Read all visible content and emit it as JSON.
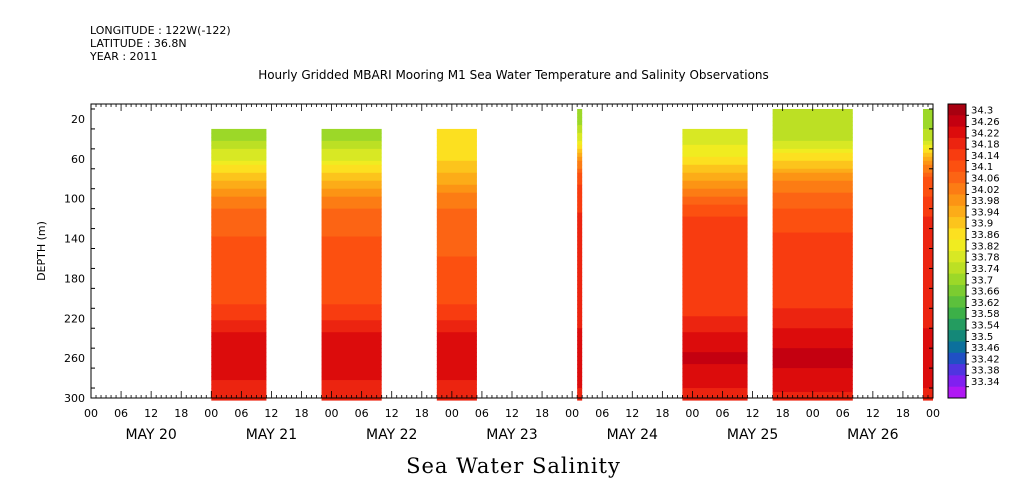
{
  "header": {
    "longitude": "LONGITUDE : 122W(-122)",
    "latitude": "LATITUDE : 36.8N",
    "year": "YEAR : 2011"
  },
  "title": "Hourly Gridded MBARI Mooring M1 Sea Water Temperature and Salinity Observations",
  "footer_title": "Sea Water Salinity",
  "chart_data": {
    "type": "heatmap",
    "ylabel": "DEPTH (m)",
    "y_ticks": [
      20,
      60,
      100,
      140,
      180,
      220,
      260,
      300
    ],
    "ylim": [
      300,
      5
    ],
    "x_hour_ticks": [
      "00",
      "06",
      "12",
      "18",
      "00",
      "06",
      "12",
      "18",
      "00",
      "06",
      "12",
      "18",
      "00",
      "06",
      "12",
      "18",
      "00",
      "06",
      "12",
      "18",
      "00",
      "06",
      "12",
      "18",
      "00",
      "06",
      "12",
      "18",
      "00"
    ],
    "x_day_labels": [
      "MAY 20",
      "MAY 21",
      "MAY 22",
      "MAY 23",
      "MAY 24",
      "MAY 25",
      "MAY 26"
    ],
    "x_range_hours": [
      0,
      168
    ],
    "colorbar_levels": [
      "34.3",
      "34.26",
      "34.22",
      "34.18",
      "34.14",
      "34.1",
      "34.06",
      "34.02",
      "33.98",
      "33.94",
      "33.9",
      "33.86",
      "33.82",
      "33.78",
      "33.74",
      "33.7",
      "33.66",
      "33.62",
      "33.58",
      "33.54",
      "33.5",
      "33.46",
      "33.42",
      "33.38",
      "33.34"
    ],
    "colorbar_colors": [
      "#a80010",
      "#c40010",
      "#dc0c0c",
      "#ec2410",
      "#f83c10",
      "#fc5010",
      "#fc6414",
      "#fc7c14",
      "#fc9414",
      "#fcac18",
      "#fcc41c",
      "#fce020",
      "#f0ec20",
      "#d8e824",
      "#bce024",
      "#9cd828",
      "#7ccc30",
      "#5cc03c",
      "#3cb048",
      "#249c60",
      "#148878",
      "#0c709c",
      "#2050c4",
      "#5034e0",
      "#8020f0",
      "#b018f4"
    ],
    "profile_depths": [
      20,
      40,
      60,
      80,
      100,
      120,
      140,
      160,
      180,
      200,
      220,
      240,
      260,
      280,
      300
    ],
    "segments": [
      {
        "start_hour": 24,
        "end_hour": 35,
        "top_depth": 40,
        "profile": [
          33.74,
          33.74,
          33.82,
          33.93,
          34.02,
          34.06,
          34.08,
          34.08,
          34.08,
          34.1,
          34.15,
          34.2,
          34.22,
          34.19,
          34.17
        ]
      },
      {
        "start_hour": 46,
        "end_hour": 58,
        "top_depth": 40,
        "profile": [
          33.72,
          33.73,
          33.82,
          33.92,
          34.02,
          34.06,
          34.08,
          34.08,
          34.08,
          34.1,
          34.15,
          34.2,
          34.22,
          34.19,
          34.17
        ]
      },
      {
        "start_hour": 69,
        "end_hour": 77,
        "top_depth": 40,
        "profile": [
          33.86,
          33.86,
          33.88,
          33.95,
          34.02,
          34.06,
          34.07,
          34.08,
          34.09,
          34.1,
          34.15,
          34.2,
          34.22,
          34.19,
          34.17
        ]
      },
      {
        "start_hour": 97,
        "end_hour": 98,
        "top_depth": 20,
        "profile": [
          33.72,
          33.8,
          34.0,
          34.1,
          34.14,
          34.16,
          34.18,
          34.18,
          34.18,
          34.18,
          34.18,
          34.2,
          34.22,
          34.2,
          34.18
        ]
      },
      {
        "start_hour": 118,
        "end_hour": 131,
        "top_depth": 40,
        "profile": [
          33.8,
          33.8,
          33.86,
          33.96,
          34.06,
          34.12,
          34.14,
          34.14,
          34.12,
          34.12,
          34.16,
          34.2,
          34.24,
          34.2,
          34.18
        ]
      },
      {
        "start_hour": 136,
        "end_hour": 152,
        "top_depth": 20,
        "profile": [
          33.76,
          33.78,
          33.88,
          34.0,
          34.06,
          34.1,
          34.12,
          34.12,
          34.12,
          34.13,
          34.17,
          34.21,
          34.25,
          34.21,
          34.18
        ]
      },
      {
        "start_hour": 166,
        "end_hour": 168,
        "top_depth": 20,
        "profile": [
          33.72,
          33.78,
          33.96,
          34.08,
          34.12,
          34.16,
          34.18,
          34.18,
          34.18,
          34.18,
          34.18,
          34.2,
          34.22,
          34.2,
          34.18
        ]
      }
    ]
  }
}
